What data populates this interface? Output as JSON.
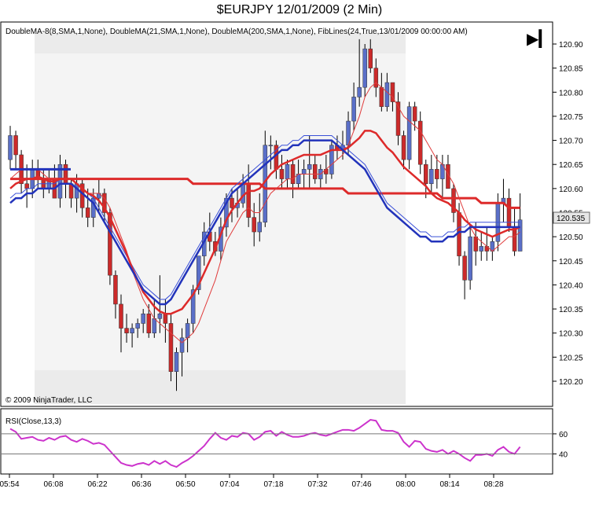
{
  "title": "$EURJPY  12/01/2009 (2 Min)",
  "indicators_label": "DoubleMA-8(8,SMA,1,None), DoubleMA(21,SMA,1,None), DoubleMA(200,SMA,1,None), FibLines(24,True,13/01/2009 00:00:00 AM)",
  "copyright": "© 2009 NinjaTrader, LLC",
  "rsi_label": "RSI(Close,13,3)",
  "last_price_label": "120.535",
  "scroll_button": "▶▎",
  "colors": {
    "up_candle": "#5a6fc8",
    "down_candle": "#cc2a2a",
    "ma_fast": "#e03c3c",
    "ma_mid": "#3a50d8",
    "ma_slow": "#dd2a2a",
    "ma_blue_thick": "#2233bb",
    "rsi_line": "#cc33cc",
    "fib_band": "#ebebeb",
    "fib_zone": "#f4f4f4"
  },
  "chart_data": {
    "type": "candlestick",
    "price_axis": {
      "ticks": [
        "120.90",
        "120.85",
        "120.80",
        "120.75",
        "120.70",
        "120.65",
        "120.60",
        "120.55",
        "120.50",
        "120.45",
        "120.40",
        "120.35",
        "120.30",
        "120.25",
        "120.20"
      ],
      "ylim": [
        120.17,
        120.93
      ]
    },
    "time_axis": {
      "ticks": [
        "05:54",
        "06:08",
        "06:22",
        "06:36",
        "06:50",
        "07:04",
        "07:18",
        "07:32",
        "07:46",
        "08:00",
        "08:14",
        "08:28"
      ]
    },
    "candles": [
      {
        "o": 120.66,
        "h": 120.73,
        "l": 120.64,
        "c": 120.71
      },
      {
        "o": 120.71,
        "h": 120.72,
        "l": 120.64,
        "c": 120.67
      },
      {
        "o": 120.67,
        "h": 120.68,
        "l": 120.59,
        "c": 120.61
      },
      {
        "o": 120.61,
        "h": 120.65,
        "l": 120.56,
        "c": 120.6
      },
      {
        "o": 120.6,
        "h": 120.66,
        "l": 120.58,
        "c": 120.64
      },
      {
        "o": 120.64,
        "h": 120.66,
        "l": 120.6,
        "c": 120.62
      },
      {
        "o": 120.62,
        "h": 120.64,
        "l": 120.58,
        "c": 120.6
      },
      {
        "o": 120.6,
        "h": 120.64,
        "l": 120.59,
        "c": 120.62
      },
      {
        "o": 120.62,
        "h": 120.65,
        "l": 120.58,
        "c": 120.58
      },
      {
        "o": 120.58,
        "h": 120.67,
        "l": 120.56,
        "c": 120.65
      },
      {
        "o": 120.65,
        "h": 120.66,
        "l": 120.58,
        "c": 120.61
      },
      {
        "o": 120.61,
        "h": 120.62,
        "l": 120.56,
        "c": 120.58
      },
      {
        "o": 120.58,
        "h": 120.63,
        "l": 120.55,
        "c": 120.61
      },
      {
        "o": 120.61,
        "h": 120.62,
        "l": 120.54,
        "c": 120.56
      },
      {
        "o": 120.56,
        "h": 120.6,
        "l": 120.52,
        "c": 120.54
      },
      {
        "o": 120.54,
        "h": 120.6,
        "l": 120.52,
        "c": 120.58
      },
      {
        "o": 120.58,
        "h": 120.62,
        "l": 120.55,
        "c": 120.59
      },
      {
        "o": 120.59,
        "h": 120.6,
        "l": 120.53,
        "c": 120.55
      },
      {
        "o": 120.55,
        "h": 120.56,
        "l": 120.4,
        "c": 120.42
      },
      {
        "o": 120.42,
        "h": 120.43,
        "l": 120.33,
        "c": 120.36
      },
      {
        "o": 120.36,
        "h": 120.38,
        "l": 120.26,
        "c": 120.31
      },
      {
        "o": 120.31,
        "h": 120.34,
        "l": 120.28,
        "c": 120.3
      },
      {
        "o": 120.3,
        "h": 120.32,
        "l": 120.27,
        "c": 120.31
      },
      {
        "o": 120.31,
        "h": 120.33,
        "l": 120.29,
        "c": 120.32
      },
      {
        "o": 120.32,
        "h": 120.35,
        "l": 120.3,
        "c": 120.34
      },
      {
        "o": 120.34,
        "h": 120.36,
        "l": 120.29,
        "c": 120.3
      },
      {
        "o": 120.3,
        "h": 120.37,
        "l": 120.29,
        "c": 120.33
      },
      {
        "o": 120.33,
        "h": 120.42,
        "l": 120.3,
        "c": 120.34
      },
      {
        "o": 120.34,
        "h": 120.37,
        "l": 120.28,
        "c": 120.32
      },
      {
        "o": 120.32,
        "h": 120.34,
        "l": 120.2,
        "c": 120.22
      },
      {
        "o": 120.22,
        "h": 120.27,
        "l": 120.18,
        "c": 120.26
      },
      {
        "o": 120.26,
        "h": 120.31,
        "l": 120.21,
        "c": 120.29
      },
      {
        "o": 120.29,
        "h": 120.33,
        "l": 120.26,
        "c": 120.32
      },
      {
        "o": 120.32,
        "h": 120.4,
        "l": 120.3,
        "c": 120.39
      },
      {
        "o": 120.39,
        "h": 120.46,
        "l": 120.38,
        "c": 120.46
      },
      {
        "o": 120.46,
        "h": 120.53,
        "l": 120.44,
        "c": 120.51
      },
      {
        "o": 120.51,
        "h": 120.55,
        "l": 120.47,
        "c": 120.49
      },
      {
        "o": 120.49,
        "h": 120.51,
        "l": 120.46,
        "c": 120.47
      },
      {
        "o": 120.47,
        "h": 120.54,
        "l": 120.45,
        "c": 120.52
      },
      {
        "o": 120.52,
        "h": 120.59,
        "l": 120.5,
        "c": 120.58
      },
      {
        "o": 120.58,
        "h": 120.6,
        "l": 120.53,
        "c": 120.56
      },
      {
        "o": 120.56,
        "h": 120.6,
        "l": 120.54,
        "c": 120.57
      },
      {
        "o": 120.57,
        "h": 120.63,
        "l": 120.56,
        "c": 120.61
      },
      {
        "o": 120.61,
        "h": 120.65,
        "l": 120.52,
        "c": 120.54
      },
      {
        "o": 120.54,
        "h": 120.57,
        "l": 120.48,
        "c": 120.51
      },
      {
        "o": 120.51,
        "h": 120.59,
        "l": 120.49,
        "c": 120.53
      },
      {
        "o": 120.53,
        "h": 120.72,
        "l": 120.52,
        "c": 120.69
      },
      {
        "o": 120.69,
        "h": 120.71,
        "l": 120.64,
        "c": 120.69
      },
      {
        "o": 120.69,
        "h": 120.7,
        "l": 120.62,
        "c": 120.64
      },
      {
        "o": 120.64,
        "h": 120.67,
        "l": 120.6,
        "c": 120.62
      },
      {
        "o": 120.62,
        "h": 120.66,
        "l": 120.6,
        "c": 120.65
      },
      {
        "o": 120.65,
        "h": 120.66,
        "l": 120.58,
        "c": 120.61
      },
      {
        "o": 120.61,
        "h": 120.66,
        "l": 120.6,
        "c": 120.63
      },
      {
        "o": 120.63,
        "h": 120.66,
        "l": 120.6,
        "c": 120.64
      },
      {
        "o": 120.64,
        "h": 120.71,
        "l": 120.6,
        "c": 120.65
      },
      {
        "o": 120.65,
        "h": 120.67,
        "l": 120.61,
        "c": 120.62
      },
      {
        "o": 120.62,
        "h": 120.65,
        "l": 120.6,
        "c": 120.64
      },
      {
        "o": 120.64,
        "h": 120.67,
        "l": 120.61,
        "c": 120.63
      },
      {
        "o": 120.63,
        "h": 120.7,
        "l": 120.62,
        "c": 120.69
      },
      {
        "o": 120.69,
        "h": 120.71,
        "l": 120.66,
        "c": 120.68
      },
      {
        "o": 120.68,
        "h": 120.72,
        "l": 120.66,
        "c": 120.69
      },
      {
        "o": 120.69,
        "h": 120.76,
        "l": 120.67,
        "c": 120.74
      },
      {
        "o": 120.74,
        "h": 120.82,
        "l": 120.72,
        "c": 120.79
      },
      {
        "o": 120.79,
        "h": 120.91,
        "l": 120.77,
        "c": 120.81
      },
      {
        "o": 120.81,
        "h": 120.9,
        "l": 120.79,
        "c": 120.89
      },
      {
        "o": 120.89,
        "h": 120.91,
        "l": 120.84,
        "c": 120.85
      },
      {
        "o": 120.85,
        "h": 120.87,
        "l": 120.79,
        "c": 120.81
      },
      {
        "o": 120.81,
        "h": 120.84,
        "l": 120.76,
        "c": 120.77
      },
      {
        "o": 120.77,
        "h": 120.84,
        "l": 120.76,
        "c": 120.82
      },
      {
        "o": 120.82,
        "h": 120.82,
        "l": 120.76,
        "c": 120.78
      },
      {
        "o": 120.78,
        "h": 120.8,
        "l": 120.69,
        "c": 120.71
      },
      {
        "o": 120.71,
        "h": 120.72,
        "l": 120.64,
        "c": 120.66
      },
      {
        "o": 120.66,
        "h": 120.78,
        "l": 120.64,
        "c": 120.77
      },
      {
        "o": 120.77,
        "h": 120.78,
        "l": 120.72,
        "c": 120.74
      },
      {
        "o": 120.74,
        "h": 120.76,
        "l": 120.63,
        "c": 120.65
      },
      {
        "o": 120.65,
        "h": 120.66,
        "l": 120.58,
        "c": 120.61
      },
      {
        "o": 120.61,
        "h": 120.67,
        "l": 120.59,
        "c": 120.64
      },
      {
        "o": 120.64,
        "h": 120.67,
        "l": 120.6,
        "c": 120.62
      },
      {
        "o": 120.62,
        "h": 120.67,
        "l": 120.58,
        "c": 120.65
      },
      {
        "o": 120.65,
        "h": 120.67,
        "l": 120.6,
        "c": 120.6
      },
      {
        "o": 120.6,
        "h": 120.61,
        "l": 120.53,
        "c": 120.55
      },
      {
        "o": 120.55,
        "h": 120.57,
        "l": 120.44,
        "c": 120.46
      },
      {
        "o": 120.46,
        "h": 120.47,
        "l": 120.37,
        "c": 120.41
      },
      {
        "o": 120.41,
        "h": 120.52,
        "l": 120.39,
        "c": 120.5
      },
      {
        "o": 120.5,
        "h": 120.53,
        "l": 120.44,
        "c": 120.47
      },
      {
        "o": 120.47,
        "h": 120.51,
        "l": 120.45,
        "c": 120.48
      },
      {
        "o": 120.48,
        "h": 120.52,
        "l": 120.45,
        "c": 120.47
      },
      {
        "o": 120.47,
        "h": 120.5,
        "l": 120.45,
        "c": 120.49
      },
      {
        "o": 120.49,
        "h": 120.59,
        "l": 120.47,
        "c": 120.57
      },
      {
        "o": 120.57,
        "h": 120.62,
        "l": 120.53,
        "c": 120.58
      },
      {
        "o": 120.58,
        "h": 120.6,
        "l": 120.51,
        "c": 120.52
      },
      {
        "o": 120.52,
        "h": 120.56,
        "l": 120.46,
        "c": 120.47
      },
      {
        "o": 120.47,
        "h": 120.59,
        "l": 120.47,
        "c": 120.535
      }
    ],
    "ma_fast": [
      120.62,
      120.63,
      120.64,
      120.64,
      120.64,
      120.64,
      120.63,
      120.62,
      120.62,
      120.62,
      120.62,
      120.62,
      120.61,
      120.6,
      120.59,
      120.59,
      120.59,
      120.58,
      120.56,
      120.53,
      120.5,
      120.47,
      120.43,
      120.4,
      120.37,
      120.35,
      120.33,
      120.32,
      120.31,
      120.3,
      120.29,
      120.28,
      120.29,
      120.3,
      120.32,
      120.35,
      120.38,
      120.41,
      120.45,
      120.49,
      120.51,
      120.53,
      120.55,
      120.56,
      120.55,
      120.55,
      120.57,
      120.59,
      120.6,
      120.61,
      120.62,
      120.62,
      120.63,
      120.63,
      120.63,
      120.63,
      120.63,
      120.64,
      120.65,
      120.66,
      120.67,
      120.69,
      120.72,
      120.75,
      120.79,
      120.81,
      120.82,
      120.81,
      120.8,
      120.79,
      120.77,
      120.75,
      120.74,
      120.73,
      120.72,
      120.7,
      120.68,
      120.66,
      120.65,
      120.63,
      120.61,
      120.58,
      120.55,
      120.52,
      120.5,
      120.49,
      120.48,
      120.47,
      120.48,
      120.49,
      120.5,
      120.5,
      120.51
    ],
    "ma_mid_partial": [
      120.58,
      120.59,
      120.59,
      120.6,
      120.6,
      120.61,
      120.61,
      120.61,
      120.61,
      120.62,
      120.62,
      120.62,
      120.61,
      120.6,
      120.59,
      120.58,
      120.56,
      120.54,
      120.52,
      120.5,
      120.48,
      120.46,
      120.44,
      120.42,
      120.4,
      120.39,
      120.38,
      120.37,
      120.37,
      120.38,
      120.4,
      120.42,
      120.44,
      120.46,
      120.48,
      120.5,
      120.52,
      120.54,
      120.56,
      120.58,
      120.6,
      120.61,
      120.62,
      120.63,
      120.64,
      120.65,
      120.66,
      120.67,
      120.68,
      120.69,
      120.69,
      120.7,
      120.7,
      120.71,
      120.71,
      120.71,
      120.71,
      120.71,
      120.71,
      120.7,
      120.69,
      120.68,
      120.67,
      120.66,
      120.65,
      120.63,
      120.61,
      120.59,
      120.57,
      120.56,
      120.55,
      120.54,
      120.53,
      120.52,
      120.51,
      120.51,
      120.5,
      120.5,
      120.5,
      120.51,
      120.51,
      120.52,
      120.52,
      120.53,
      120.53,
      120.53,
      120.53,
      120.53,
      120.53,
      120.53,
      120.53,
      120.53,
      120.53
    ],
    "ma_slow": [
      120.62,
      120.62,
      120.62,
      120.62,
      120.62,
      120.62,
      120.62,
      120.62,
      120.62,
      120.62,
      120.62,
      120.62,
      120.62,
      120.62,
      120.62,
      120.62,
      120.62,
      120.62,
      120.62,
      120.62,
      120.62,
      120.62,
      120.62,
      120.62,
      120.62,
      120.62,
      120.62,
      120.62,
      120.62,
      120.62,
      120.62,
      120.62,
      120.62,
      120.61,
      120.61,
      120.61,
      120.61,
      120.61,
      120.61,
      120.61,
      120.61,
      120.61,
      120.61,
      120.61,
      120.61,
      120.61,
      120.6,
      120.6,
      120.6,
      120.6,
      120.6,
      120.6,
      120.6,
      120.6,
      120.6,
      120.6,
      120.6,
      120.6,
      120.6,
      120.6,
      120.6,
      120.59,
      120.59,
      120.59,
      120.59,
      120.59,
      120.59,
      120.59,
      120.59,
      120.59,
      120.59,
      120.59,
      120.59,
      120.59,
      120.59,
      120.59,
      120.59,
      120.59,
      120.58,
      120.58,
      120.58,
      120.58,
      120.58,
      120.58,
      120.58,
      120.57,
      120.57,
      120.57,
      120.57,
      120.57,
      120.56,
      120.56,
      120.56
    ],
    "rsi": {
      "ticks": [
        "60",
        "40"
      ],
      "ylim": [
        20,
        85
      ],
      "values": [
        65,
        62,
        55,
        56,
        57,
        54,
        53,
        56,
        54,
        57,
        58,
        54,
        52,
        55,
        53,
        50,
        51,
        49,
        43,
        37,
        31,
        29,
        28,
        30,
        31,
        29,
        33,
        30,
        33,
        29,
        27,
        31,
        34,
        38,
        43,
        48,
        55,
        61,
        56,
        54,
        58,
        57,
        61,
        60,
        54,
        57,
        62,
        63,
        58,
        62,
        59,
        57,
        57,
        58,
        60,
        61,
        59,
        58,
        60,
        62,
        64,
        64,
        63,
        66,
        70,
        74,
        73,
        64,
        63,
        63,
        61,
        52,
        47,
        53,
        52,
        45,
        43,
        42,
        44,
        40,
        43,
        40,
        36,
        33,
        39,
        39,
        40,
        38,
        44,
        47,
        42,
        40,
        47
      ]
    }
  }
}
